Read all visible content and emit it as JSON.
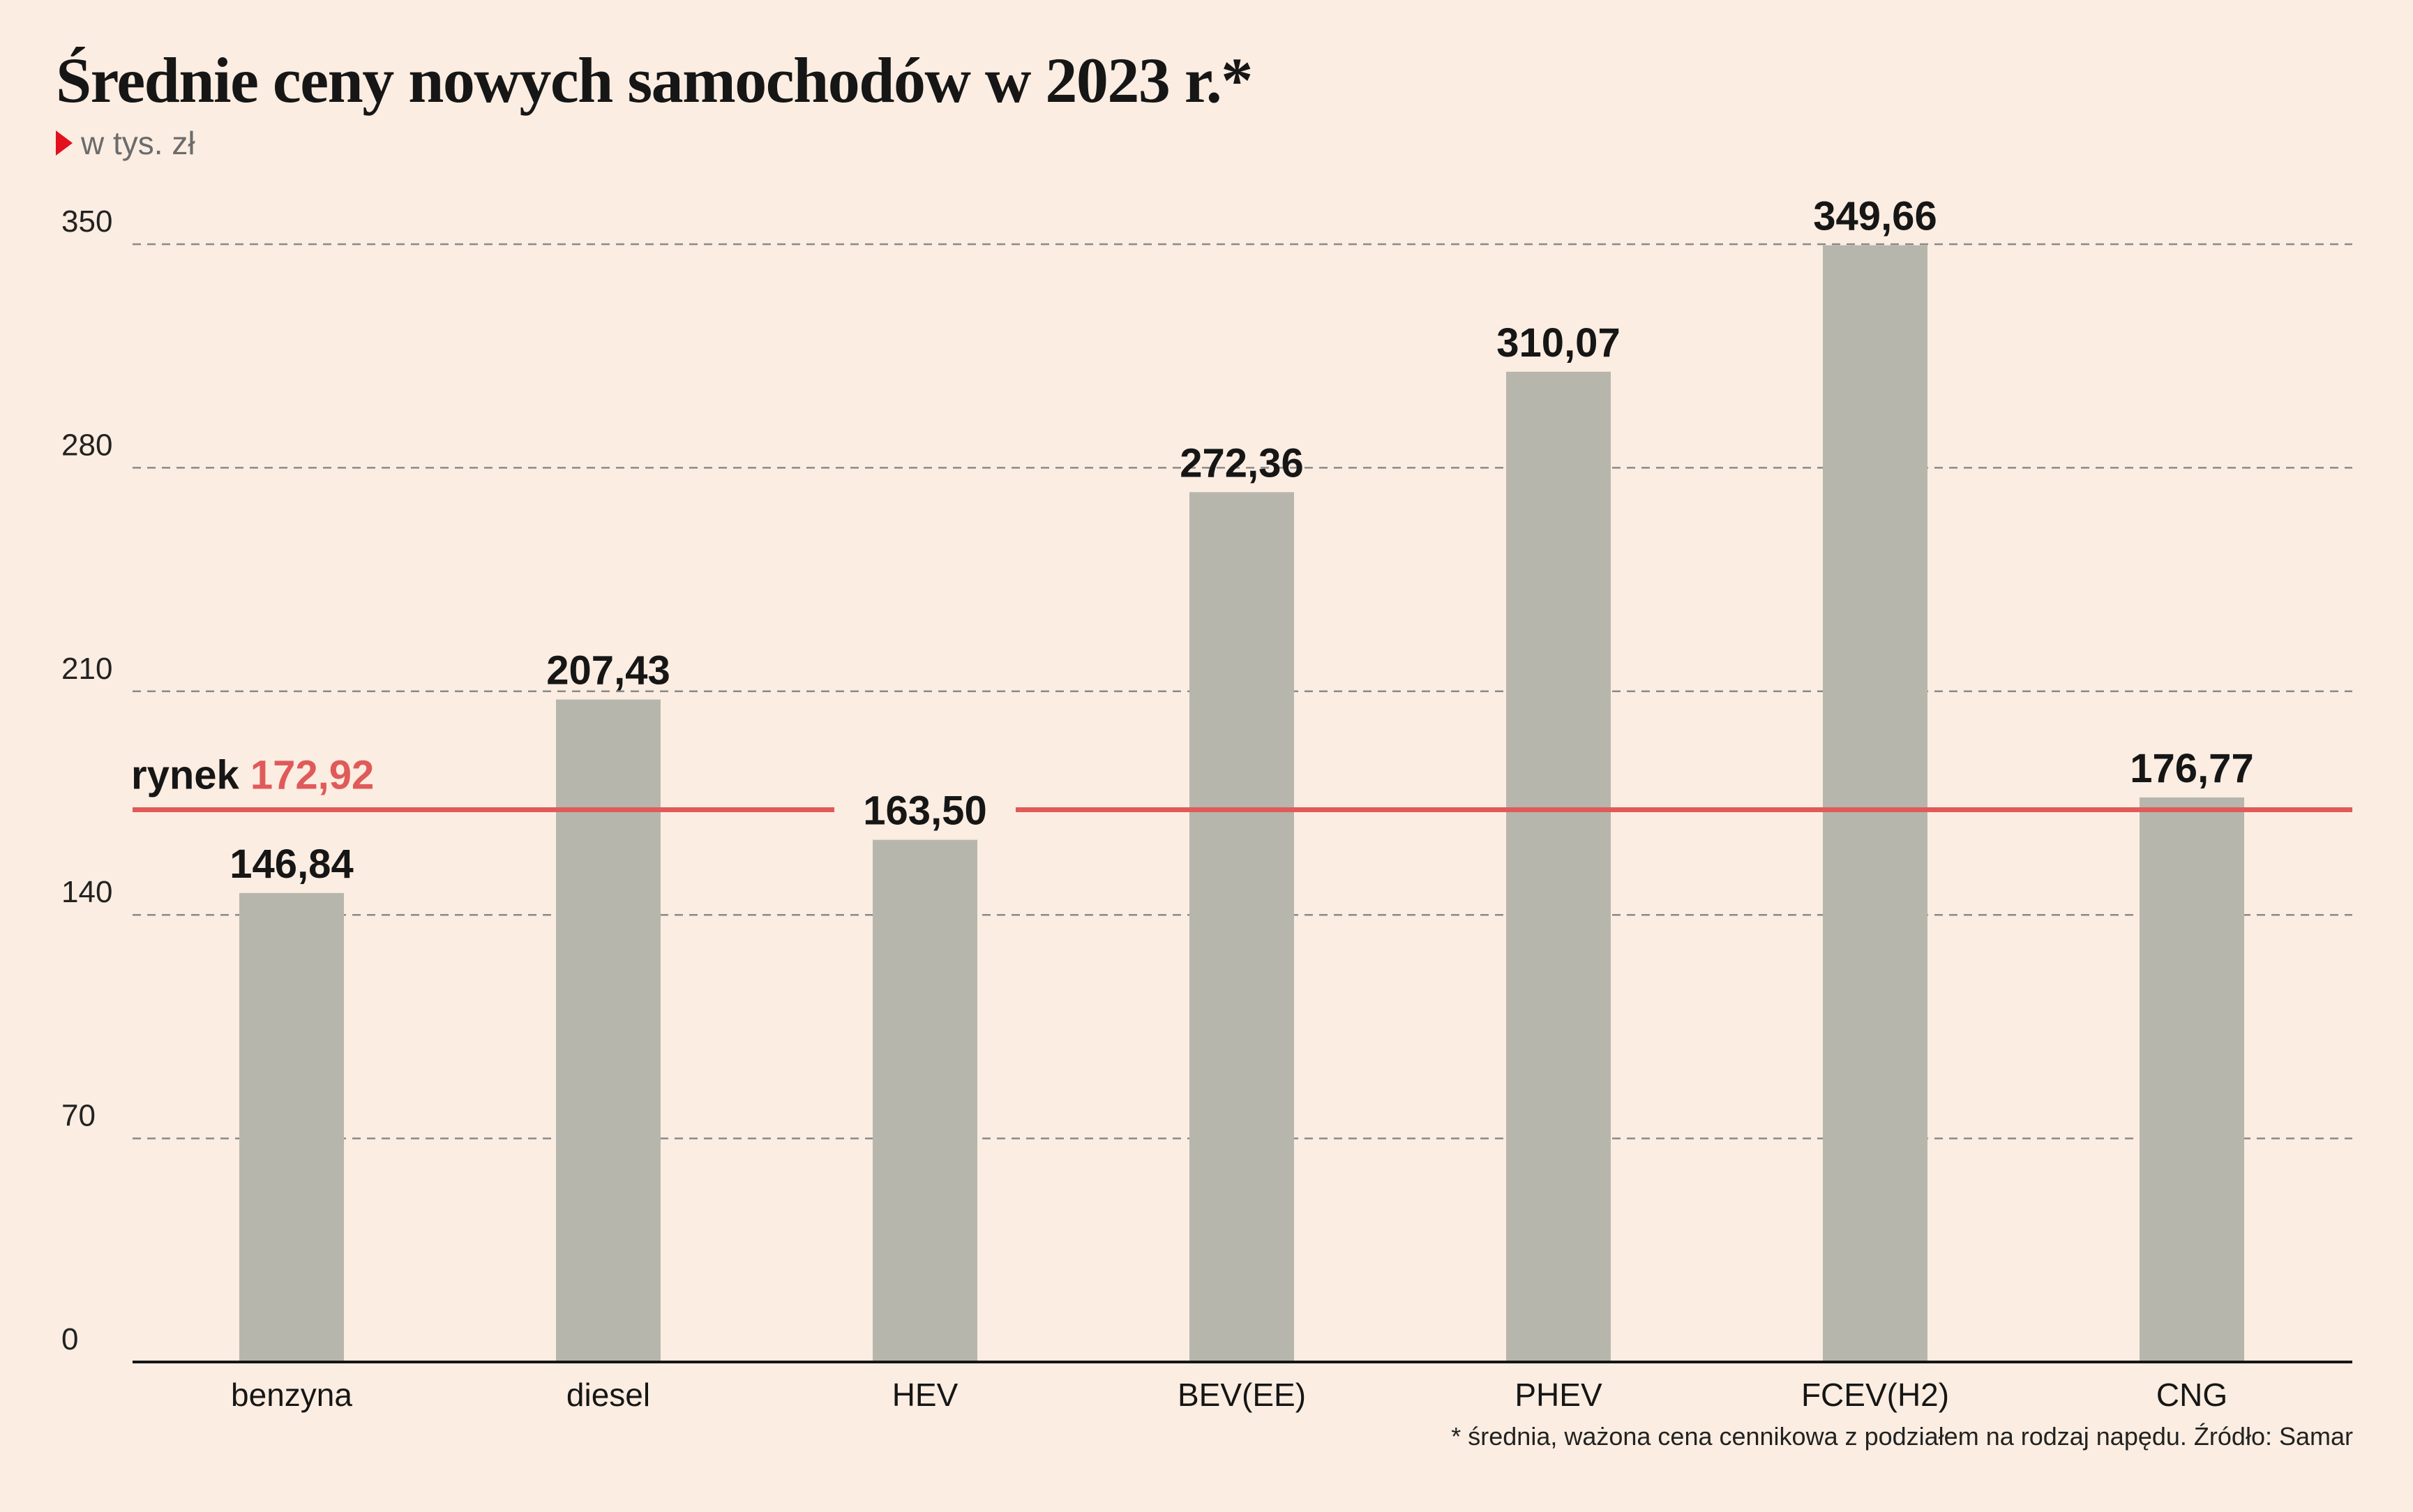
{
  "header": {
    "title": "Średnie ceny nowych samochodów w 2023 r.*",
    "subtitle": "w tys. zł"
  },
  "footnote": "* średnia, ważona cena cennikowa z podziałem na rodzaj napędu. Źródło: Samar",
  "colors": {
    "background": "#fbede1",
    "bar": "#b7b6ad",
    "reference_line": "#e05a5a",
    "grid": "#8a8a8a",
    "marker": "#e3101d"
  },
  "chart_data": {
    "type": "bar",
    "categories": [
      "benzyna",
      "diesel",
      "HEV",
      "BEV(EE)",
      "PHEV",
      "FCEV(H2)",
      "CNG"
    ],
    "values": [
      146.84,
      207.43,
      163.5,
      272.36,
      310.07,
      349.66,
      176.77
    ],
    "value_labels": [
      "146,84",
      "207,43",
      "163,50",
      "272,36",
      "310,07",
      "349,66",
      "176,77"
    ],
    "ylim": [
      0,
      350
    ],
    "yticks": [
      0,
      70,
      140,
      210,
      280,
      350
    ],
    "grid": "dashed horizontal",
    "reference_line": {
      "label": "rynek",
      "value": 172.92,
      "value_label": "172,92"
    }
  }
}
